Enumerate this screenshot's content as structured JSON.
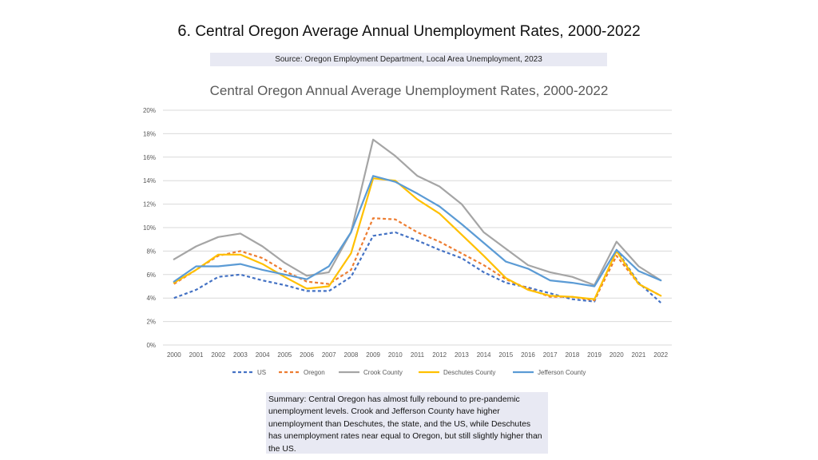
{
  "slide": {
    "number": "6.",
    "title": "Central Oregon Average Annual Unemployment Rates, 2000-2022",
    "source": "Source: Oregon Employment Department, Local Area Unemployment, 2023",
    "summary": "Summary: Central Oregon has almost fully rebound to pre-pandemic unemployment levels. Crook and Jefferson County have higher unemployment than Deschutes, the state, and the US, while Deschutes has unemployment rates near equal to Oregon, but still slightly higher than the US."
  },
  "chart_data": {
    "type": "line",
    "title": "Central Oregon Annual Average Unemployment Rates, 2000-2022",
    "xlabel": "",
    "ylabel": "",
    "ylim": [
      0,
      20
    ],
    "yticks": [
      "0%",
      "2%",
      "4%",
      "6%",
      "8%",
      "10%",
      "12%",
      "14%",
      "16%",
      "18%",
      "20%"
    ],
    "grid": true,
    "legend": "bottom",
    "categories": [
      "2000",
      "2001",
      "2002",
      "2003",
      "2004",
      "2005",
      "2006",
      "2007",
      "2008",
      "2009",
      "2010",
      "2011",
      "2012",
      "2013",
      "2014",
      "2015",
      "2016",
      "2017",
      "2018",
      "2019",
      "2020",
      "2021",
      "2022"
    ],
    "series": [
      {
        "name": "US",
        "color": "#4472c4",
        "dash": true,
        "values": [
          4.0,
          4.7,
          5.8,
          6.0,
          5.5,
          5.1,
          4.6,
          4.6,
          5.8,
          9.3,
          9.6,
          8.9,
          8.1,
          7.4,
          6.2,
          5.3,
          4.9,
          4.4,
          3.9,
          3.7,
          8.1,
          5.3,
          3.6
        ]
      },
      {
        "name": "Oregon",
        "color": "#ed7d31",
        "dash": true,
        "values": [
          5.2,
          6.4,
          7.6,
          8.0,
          7.4,
          6.3,
          5.4,
          5.2,
          6.4,
          10.8,
          10.7,
          9.6,
          8.8,
          7.8,
          6.8,
          5.6,
          4.8,
          4.1,
          4.1,
          3.8,
          7.6,
          5.2,
          4.2
        ]
      },
      {
        "name": "Crook County",
        "color": "#a5a5a5",
        "dash": false,
        "values": [
          7.3,
          8.4,
          9.2,
          9.5,
          8.4,
          7.0,
          5.9,
          6.2,
          9.6,
          17.5,
          16.1,
          14.4,
          13.5,
          12.0,
          9.6,
          8.2,
          6.8,
          6.2,
          5.8,
          5.1,
          8.8,
          6.7,
          5.5
        ]
      },
      {
        "name": "Deschutes County",
        "color": "#ffc000",
        "dash": false,
        "values": [
          5.3,
          6.4,
          7.7,
          7.7,
          6.9,
          5.8,
          4.8,
          5.0,
          7.8,
          14.2,
          14.0,
          12.4,
          11.2,
          9.4,
          7.6,
          5.7,
          4.7,
          4.2,
          4.1,
          3.9,
          8.0,
          5.2,
          4.2
        ]
      },
      {
        "name": "Jefferson County",
        "color": "#5b9bd5",
        "dash": false,
        "values": [
          5.4,
          6.7,
          6.7,
          6.9,
          6.4,
          6.0,
          5.6,
          6.7,
          9.6,
          14.4,
          13.9,
          12.9,
          11.8,
          10.3,
          8.7,
          7.1,
          6.5,
          5.5,
          5.3,
          5.0,
          8.1,
          6.3,
          5.5
        ]
      }
    ]
  }
}
